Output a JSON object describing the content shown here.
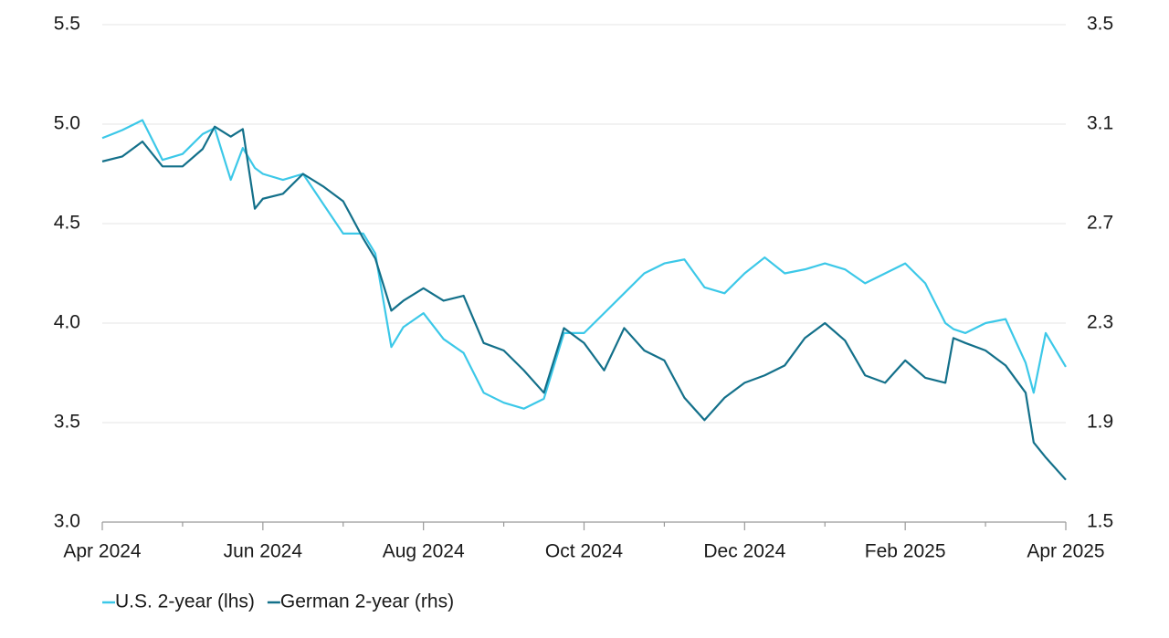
{
  "chart_data": {
    "type": "line",
    "x": [
      0,
      0.25,
      0.5,
      0.75,
      1,
      1.25,
      1.4,
      1.6,
      1.75,
      1.9,
      2,
      2.25,
      2.5,
      2.75,
      3,
      3.25,
      3.4,
      3.6,
      3.75,
      4,
      4.25,
      4.5,
      4.75,
      5,
      5.25,
      5.5,
      5.75,
      6,
      6.25,
      6.5,
      6.75,
      7,
      7.25,
      7.5,
      7.75,
      8,
      8.25,
      8.5,
      8.75,
      9,
      9.25,
      9.5,
      9.75,
      10,
      10.25,
      10.5,
      10.6,
      10.75,
      11,
      11.25,
      11.5,
      11.6,
      11.75,
      12
    ],
    "series": [
      {
        "name": "U.S. 2-year (lhs)",
        "color": "#3cc8e8",
        "axis": "y",
        "values": [
          4.93,
          4.97,
          5.02,
          4.82,
          4.85,
          4.95,
          4.98,
          4.72,
          4.88,
          4.78,
          4.75,
          4.72,
          4.75,
          4.6,
          4.45,
          4.45,
          4.35,
          3.88,
          3.98,
          4.05,
          3.92,
          3.85,
          3.65,
          3.6,
          3.57,
          3.62,
          3.95,
          3.95,
          4.05,
          4.15,
          4.25,
          4.3,
          4.32,
          4.18,
          4.15,
          4.25,
          4.33,
          4.25,
          4.27,
          4.3,
          4.27,
          4.2,
          4.25,
          4.3,
          4.2,
          4.0,
          3.97,
          3.95,
          4.0,
          4.02,
          3.8,
          3.65,
          3.95,
          3.78
        ]
      },
      {
        "name": "German 2-year (rhs)",
        "color": "#13708a",
        "axis": "y2",
        "values": [
          2.95,
          2.97,
          3.03,
          2.93,
          2.93,
          3.0,
          3.09,
          3.05,
          3.08,
          2.76,
          2.8,
          2.82,
          2.9,
          2.85,
          2.79,
          2.64,
          2.56,
          2.35,
          2.39,
          2.44,
          2.39,
          2.41,
          2.22,
          2.19,
          2.11,
          2.02,
          2.28,
          2.22,
          2.11,
          2.28,
          2.19,
          2.15,
          2.0,
          1.91,
          2.0,
          2.06,
          2.09,
          2.13,
          2.24,
          2.3,
          2.23,
          2.09,
          2.06,
          2.15,
          2.08,
          2.06,
          2.24,
          2.22,
          2.19,
          2.13,
          2.02,
          1.82,
          1.76,
          1.67
        ]
      }
    ],
    "xlim": [
      0,
      12
    ],
    "xticks": [
      {
        "value": 0,
        "label": "Apr 2024"
      },
      {
        "value": 2,
        "label": "Jun 2024"
      },
      {
        "value": 4,
        "label": "Aug 2024"
      },
      {
        "value": 6,
        "label": "Oct 2024"
      },
      {
        "value": 8,
        "label": "Dec 2024"
      },
      {
        "value": 10,
        "label": "Feb 2025"
      },
      {
        "value": 12,
        "label": "Apr 2025"
      }
    ],
    "xminorticks": [
      1,
      3,
      5,
      7,
      9,
      11
    ],
    "ylim": [
      3.0,
      5.5
    ],
    "yticks": [
      {
        "value": 3,
        "label": "3.0"
      },
      3.5,
      {
        "value": 4,
        "label": "4.0"
      },
      4.5,
      {
        "value": 5,
        "label": "5.0"
      },
      5.5
    ],
    "y2lim": [
      1.5,
      3.5
    ],
    "y2ticks": [
      1.5,
      1.9,
      2.3,
      2.7,
      3.1,
      3.5
    ],
    "grid": true,
    "legend": "bottom-left"
  }
}
